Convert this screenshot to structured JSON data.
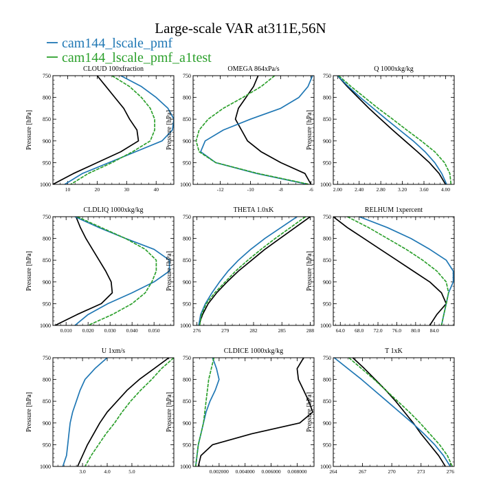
{
  "title": "Large-scale VAR at311E,56N",
  "legend": [
    {
      "label": "cam144_lscale_pmf",
      "color": "#1f77b4",
      "dash": false
    },
    {
      "label": "cam144_lscale_pmf_a1test",
      "color": "#2ca02c",
      "dash": true
    }
  ],
  "chart_data": [
    {
      "type": "line",
      "title": "CLOUD  100xfraction",
      "ylabel": "Pressure [hPa]",
      "xlim": [
        5,
        46
      ],
      "xticks": [
        10,
        20,
        30,
        40
      ],
      "xtick_labels": [
        "10",
        "20",
        "30",
        "40"
      ],
      "ylim": [
        1000,
        750
      ],
      "yticks": [
        750,
        800,
        850,
        900,
        950,
        1000
      ],
      "pressure": [
        750,
        775,
        800,
        825,
        850,
        875,
        900,
        925,
        950,
        975,
        1000
      ],
      "series": [
        {
          "name": "black",
          "color": "#000000",
          "values": [
            20,
            23,
            26,
            29,
            31,
            33.5,
            34,
            28,
            20,
            12,
            5
          ]
        },
        {
          "name": "cam144_lscale_pmf",
          "color": "#1f77b4",
          "values": [
            28,
            35,
            40,
            44,
            46,
            45.5,
            42,
            33,
            24,
            15,
            9
          ]
        },
        {
          "name": "cam144_lscale_pmf_a1test",
          "color": "#2ca02c",
          "dash": true,
          "values": [
            25,
            31,
            35,
            38,
            39.5,
            39.5,
            38,
            32,
            25,
            17,
            11
          ]
        }
      ]
    },
    {
      "type": "line",
      "title": "OMEGA  864xPa/s",
      "ylabel": "Pressure [hPa]",
      "xlim": [
        -13.8,
        -5.8
      ],
      "xticks": [
        -12,
        -10,
        -8,
        -6
      ],
      "xtick_labels": [
        "-12",
        "-10",
        "-8",
        "-6"
      ],
      "ylim": [
        1000,
        750
      ],
      "yticks": [
        750,
        800,
        850,
        900,
        950,
        1000
      ],
      "pressure": [
        750,
        775,
        800,
        825,
        850,
        875,
        900,
        925,
        950,
        975,
        1000
      ],
      "series": [
        {
          "name": "black",
          "color": "#000000",
          "values": [
            -9.5,
            -9.8,
            -10.3,
            -10.8,
            -11.0,
            -10.6,
            -10.2,
            -9.3,
            -8.0,
            -6.4,
            -6.0
          ]
        },
        {
          "name": "cam144_lscale_pmf",
          "color": "#1f77b4",
          "values": [
            -5.9,
            -6.2,
            -6.8,
            -8.0,
            -10.0,
            -11.8,
            -13.0,
            -13.3,
            -12.3,
            -9.6,
            -6.2
          ]
        },
        {
          "name": "cam144_lscale_pmf_a1test",
          "color": "#2ca02c",
          "dash": true,
          "values": [
            -8.4,
            -9.3,
            -10.5,
            -11.8,
            -12.8,
            -13.4,
            -13.6,
            -13.4,
            -12.3,
            -9.5,
            -6.1
          ]
        }
      ]
    },
    {
      "type": "line",
      "title": "Q  1000xkg/kg",
      "ylabel": "Pressure [hPa]",
      "xlim": [
        1.92,
        4.16
      ],
      "xticks": [
        2.0,
        2.4,
        2.8,
        3.2,
        3.6,
        4.0
      ],
      "xtick_labels": [
        "2.00",
        "2.40",
        "2.80",
        "3.20",
        "3.60",
        "4.00"
      ],
      "ylim": [
        1000,
        750
      ],
      "yticks": [
        750,
        800,
        850,
        900,
        950,
        1000
      ],
      "pressure": [
        750,
        775,
        800,
        825,
        850,
        875,
        900,
        925,
        950,
        975,
        1000
      ],
      "series": [
        {
          "name": "black",
          "color": "#000000",
          "values": [
            2.0,
            2.18,
            2.38,
            2.58,
            2.8,
            3.02,
            3.25,
            3.48,
            3.7,
            3.88,
            4.0
          ]
        },
        {
          "name": "cam144_lscale_pmf",
          "color": "#1f77b4",
          "values": [
            2.0,
            2.2,
            2.42,
            2.66,
            2.9,
            3.15,
            3.4,
            3.62,
            3.8,
            3.93,
            4.02
          ]
        },
        {
          "name": "cam144_lscale_pmf_a1test",
          "color": "#2ca02c",
          "dash": true,
          "values": [
            2.02,
            2.25,
            2.5,
            2.75,
            3.02,
            3.28,
            3.55,
            3.8,
            3.98,
            4.08,
            4.1
          ]
        }
      ]
    },
    {
      "type": "line",
      "title": "CLDLIQ  1000xkg/kg",
      "ylabel": "Pressure [hPa]",
      "xlim": [
        0.004,
        0.059
      ],
      "xticks": [
        0.01,
        0.02,
        0.03,
        0.04,
        0.05
      ],
      "xtick_labels": [
        "0.010",
        "0.020",
        "0.030",
        "0.040",
        "0.050"
      ],
      "ylim": [
        1000,
        750
      ],
      "yticks": [
        750,
        800,
        850,
        900,
        950,
        1000
      ],
      "pressure": [
        750,
        775,
        800,
        825,
        850,
        875,
        900,
        925,
        950,
        975,
        1000
      ],
      "series": [
        {
          "name": "black",
          "color": "#000000",
          "values": [
            0.0145,
            0.0165,
            0.019,
            0.022,
            0.025,
            0.028,
            0.0305,
            0.031,
            0.026,
            0.015,
            0.005
          ]
        },
        {
          "name": "cam144_lscale_pmf",
          "color": "#1f77b4",
          "values": [
            0.014,
            0.025,
            0.037,
            0.05,
            0.057,
            0.057,
            0.05,
            0.04,
            0.029,
            0.02,
            0.014
          ]
        },
        {
          "name": "cam144_lscale_pmf_a1test",
          "color": "#2ca02c",
          "dash": true,
          "values": [
            0.015,
            0.026,
            0.037,
            0.046,
            0.051,
            0.051,
            0.049,
            0.046,
            0.04,
            0.031,
            0.02
          ]
        }
      ]
    },
    {
      "type": "line",
      "title": "THETA  1.0xK",
      "ylabel": "Pressure [hPa]",
      "xlim": [
        275.6,
        288.4
      ],
      "xticks": [
        276,
        279,
        282,
        285,
        288
      ],
      "xtick_labels": [
        "276",
        "279",
        "282",
        "285",
        "288"
      ],
      "ylim": [
        1000,
        750
      ],
      "yticks": [
        750,
        800,
        850,
        900,
        950,
        1000
      ],
      "pressure": [
        750,
        775,
        800,
        825,
        850,
        875,
        900,
        925,
        950,
        975,
        1000
      ],
      "series": [
        {
          "name": "black",
          "color": "#000000",
          "values": [
            288.0,
            286.4,
            284.8,
            283.2,
            281.8,
            280.4,
            279.2,
            278.1,
            277.2,
            276.6,
            276.2
          ]
        },
        {
          "name": "cam144_lscale_pmf",
          "color": "#1f77b4",
          "values": [
            286.6,
            284.9,
            283.2,
            281.7,
            280.4,
            279.3,
            278.4,
            277.6,
            276.9,
            276.4,
            276.2
          ]
        },
        {
          "name": "cam144_lscale_pmf_a1test",
          "color": "#2ca02c",
          "dash": true,
          "values": [
            287.5,
            285.9,
            284.3,
            282.8,
            281.4,
            280.1,
            279.0,
            277.9,
            277.0,
            276.5,
            276.3
          ]
        }
      ]
    },
    {
      "type": "line",
      "title": "RELHUM  1xpercent",
      "ylabel": "Pressure [hPa]",
      "xlim": [
        62.5,
        88.2
      ],
      "xticks": [
        64,
        68,
        72,
        76,
        80,
        84
      ],
      "xtick_labels": [
        "64.0",
        "68.0",
        "72.0",
        "76.0",
        "80.0",
        "84.0"
      ],
      "ylim": [
        1000,
        750
      ],
      "yticks": [
        750,
        800,
        850,
        900,
        950,
        1000
      ],
      "pressure": [
        750,
        775,
        800,
        825,
        850,
        875,
        900,
        925,
        950,
        975,
        1000
      ],
      "series": [
        {
          "name": "black",
          "color": "#000000",
          "values": [
            62.5,
            65.5,
            69,
            72.5,
            76,
            79.5,
            83,
            85.5,
            86.5,
            84.5,
            83
          ]
        },
        {
          "name": "cam144_lscale_pmf",
          "color": "#1f77b4",
          "values": [
            68,
            74,
            79,
            83,
            86.5,
            88,
            88,
            87,
            86.5,
            86,
            85.5
          ]
        },
        {
          "name": "cam144_lscale_pmf_a1test",
          "color": "#2ca02c",
          "dash": true,
          "values": [
            65.5,
            70,
            74,
            78,
            81.5,
            84.5,
            86.5,
            87,
            86.5,
            86,
            85.5
          ]
        }
      ]
    },
    {
      "type": "line",
      "title": "U  1xm/s",
      "ylabel": "Pressure [hPa]",
      "xlim": [
        1.8,
        6.7
      ],
      "xticks": [
        3.0,
        4.0,
        5.0
      ],
      "xtick_labels": [
        "3.0",
        "4.0",
        "5.0"
      ],
      "ylim": [
        1000,
        750
      ],
      "yticks": [
        750,
        800,
        850,
        900,
        950,
        1000
      ],
      "pressure": [
        750,
        775,
        800,
        825,
        850,
        875,
        900,
        925,
        950,
        975,
        1000
      ],
      "series": [
        {
          "name": "black",
          "color": "#000000",
          "values": [
            6.5,
            5.9,
            5.3,
            4.8,
            4.4,
            4.0,
            3.7,
            3.45,
            3.2,
            3.0,
            2.8
          ]
        },
        {
          "name": "cam144_lscale_pmf",
          "color": "#1f77b4",
          "values": [
            4.0,
            3.5,
            3.1,
            2.9,
            2.75,
            2.6,
            2.5,
            2.45,
            2.4,
            2.35,
            2.2
          ]
        },
        {
          "name": "cam144_lscale_pmf_a1test",
          "color": "#2ca02c",
          "dash": true,
          "values": [
            6.7,
            6.2,
            5.8,
            5.35,
            4.95,
            4.6,
            4.3,
            3.95,
            3.65,
            3.35,
            3.1
          ]
        }
      ]
    },
    {
      "type": "line",
      "title": "CLDICE  1000xkg/kg",
      "ylabel": "Pressure [hPa]",
      "xlim": [
        0.0,
        0.0093
      ],
      "xticks": [
        0.002,
        0.004,
        0.006,
        0.008
      ],
      "xtick_labels": [
        "0.002000",
        "0.004000",
        "0.006000",
        "0.008000"
      ],
      "ylim": [
        1000,
        750
      ],
      "yticks": [
        750,
        800,
        850,
        900,
        950,
        1000
      ],
      "pressure": [
        750,
        775,
        800,
        825,
        850,
        875,
        900,
        925,
        950,
        975,
        1000
      ],
      "series": [
        {
          "name": "black",
          "color": "#000000",
          "values": [
            0.0085,
            0.008,
            0.0081,
            0.0085,
            0.0089,
            0.0092,
            0.0082,
            0.0045,
            0.0015,
            0.0006,
            0.0004
          ]
        },
        {
          "name": "cam144_lscale_pmf",
          "color": "#1f77b4",
          "values": [
            0.0015,
            0.0018,
            0.002,
            0.0017,
            0.0013,
            0.001,
            0.0008,
            0.0006,
            0.0004,
            0.0003,
            0.0002
          ]
        },
        {
          "name": "cam144_lscale_pmf_a1test",
          "color": "#2ca02c",
          "dash": true,
          "values": [
            0.0016,
            0.0014,
            0.0012,
            0.0011,
            0.001,
            0.0009,
            0.0008,
            0.0006,
            0.0004,
            0.0003,
            0.0002
          ]
        }
      ]
    },
    {
      "type": "line",
      "title": "T  1xK",
      "ylabel": "Pressure [hPa]",
      "xlim": [
        264,
        276.4
      ],
      "xticks": [
        264,
        267,
        270,
        273,
        276
      ],
      "xtick_labels": [
        "264",
        "267",
        "270",
        "273",
        "276"
      ],
      "ylim": [
        1000,
        750
      ],
      "yticks": [
        750,
        800,
        850,
        900,
        950,
        1000
      ],
      "pressure": [
        750,
        775,
        800,
        825,
        850,
        875,
        900,
        925,
        950,
        975,
        1000
      ],
      "series": [
        {
          "name": "black",
          "color": "#000000",
          "values": [
            266,
            267.2,
            268.3,
            269.4,
            270.4,
            271.3,
            272.2,
            273.0,
            273.9,
            274.8,
            275.5
          ]
        },
        {
          "name": "cam144_lscale_pmf",
          "color": "#1f77b4",
          "values": [
            264.1,
            265.5,
            266.9,
            268.2,
            269.5,
            270.8,
            272.1,
            273.3,
            274.4,
            275.3,
            276.0
          ]
        },
        {
          "name": "cam144_lscale_pmf_a1test",
          "color": "#2ca02c",
          "dash": true,
          "values": [
            265.6,
            266.9,
            268.2,
            269.4,
            270.6,
            271.8,
            272.9,
            273.9,
            274.9,
            275.7,
            276.2
          ]
        }
      ]
    }
  ]
}
